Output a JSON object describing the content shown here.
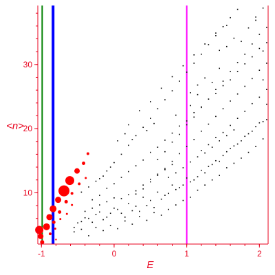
{
  "chart_data": {
    "type": "scatter",
    "title": "",
    "xlabel": "E",
    "ylabel": "<n>",
    "xlim": [
      -1.05,
      2.12
    ],
    "ylim": [
      2.0,
      39.2
    ],
    "grid": false,
    "legend": "none",
    "x_ticks": [
      {
        "value": -1,
        "label": "-1"
      },
      {
        "value": 0,
        "label": "0"
      },
      {
        "value": 1,
        "label": "1"
      },
      {
        "value": 2,
        "label": "2"
      }
    ],
    "y_ticks": [
      {
        "value": 10,
        "label": "10"
      },
      {
        "value": 20,
        "label": "20"
      },
      {
        "value": 30,
        "label": "30"
      }
    ],
    "vertical_lines": [
      {
        "x": -0.99,
        "color": "#008000",
        "weight": "thin"
      },
      {
        "x": -0.84,
        "color": "#0000ff",
        "weight": "thick"
      },
      {
        "x": 1.0,
        "color": "#ff00ff",
        "weight": "medium"
      }
    ],
    "series": [
      {
        "color": "#ff0000",
        "marker": "red circles sized by weight",
        "points": [
          {
            "x": -1.01,
            "y": 3.2,
            "size": 4
          },
          {
            "x": -1.03,
            "y": 4.2,
            "size": 6
          },
          {
            "x": -0.99,
            "y": 2.3,
            "size": 3
          },
          {
            "x": -0.93,
            "y": 4.7,
            "size": 5
          },
          {
            "x": -0.89,
            "y": 6.2,
            "size": 4.5
          },
          {
            "x": -0.84,
            "y": 7.5,
            "size": 5
          },
          {
            "x": -0.77,
            "y": 8.9,
            "size": 4.5
          },
          {
            "x": -0.69,
            "y": 10.3,
            "size": 8
          },
          {
            "x": -0.61,
            "y": 11.9,
            "size": 6.5
          },
          {
            "x": -0.51,
            "y": 13.4,
            "size": 4
          },
          {
            "x": -0.42,
            "y": 14.6,
            "size": 2.5
          },
          {
            "x": -0.36,
            "y": 16.1,
            "size": 2
          },
          {
            "x": -0.83,
            "y": 5.4,
            "size": 2.5
          },
          {
            "x": -0.75,
            "y": 7.0,
            "size": 2.5
          },
          {
            "x": -0.66,
            "y": 8.6,
            "size": 2.5
          },
          {
            "x": -0.58,
            "y": 9.9,
            "size": 2
          },
          {
            "x": -0.48,
            "y": 11.4,
            "size": 2
          },
          {
            "x": -0.39,
            "y": 12.3,
            "size": 1.5
          },
          {
            "x": -0.88,
            "y": 3.6,
            "size": 2
          },
          {
            "x": -0.81,
            "y": 4.4,
            "size": 1.5
          },
          {
            "x": -0.74,
            "y": 5.9,
            "size": 1.5
          },
          {
            "x": -0.65,
            "y": 6.7,
            "size": 1.5
          },
          {
            "x": -0.58,
            "y": 8.1,
            "size": 1.5
          },
          {
            "x": -0.8,
            "y": 2.7,
            "size": 1.2
          }
        ]
      },
      {
        "color": "#000000",
        "marker": "dot",
        "points": [
          [
            -0.55,
            3.9
          ],
          [
            -0.45,
            4.3
          ],
          [
            -0.35,
            3.3
          ],
          [
            -0.25,
            4.6
          ],
          [
            -0.15,
            4.1
          ],
          [
            -0.05,
            4.9
          ],
          [
            0.05,
            4.4
          ],
          [
            0.15,
            5.6
          ],
          [
            0.25,
            5.1
          ],
          [
            0.35,
            6.3
          ],
          [
            0.45,
            5.7
          ],
          [
            0.55,
            6.9
          ],
          [
            0.65,
            6.5
          ],
          [
            0.75,
            7.4
          ],
          [
            0.85,
            8.1
          ],
          [
            0.95,
            8.8
          ],
          [
            1.05,
            9.3
          ],
          [
            1.15,
            10.4
          ],
          [
            1.25,
            11.2
          ],
          [
            1.35,
            12.0
          ],
          [
            1.45,
            12.7
          ],
          [
            1.55,
            13.9
          ],
          [
            1.65,
            14.6
          ],
          [
            1.75,
            15.4
          ],
          [
            1.85,
            16.3
          ],
          [
            1.95,
            17.2
          ],
          [
            2.05,
            18.4
          ],
          [
            -0.5,
            5.3
          ],
          [
            -0.4,
            6.1
          ],
          [
            -0.3,
            5.4
          ],
          [
            -0.2,
            7.0
          ],
          [
            -0.1,
            6.2
          ],
          [
            0.0,
            7.6
          ],
          [
            0.1,
            6.8
          ],
          [
            0.2,
            8.3
          ],
          [
            0.3,
            7.9
          ],
          [
            0.4,
            9.3
          ],
          [
            0.5,
            8.8
          ],
          [
            0.6,
            10.1
          ],
          [
            0.7,
            9.6
          ],
          [
            0.8,
            11.2
          ],
          [
            0.9,
            10.8
          ],
          [
            1.0,
            12.3
          ],
          [
            1.1,
            12.0
          ],
          [
            1.2,
            13.5
          ],
          [
            1.3,
            14.1
          ],
          [
            1.4,
            15.0
          ],
          [
            1.5,
            15.8
          ],
          [
            1.6,
            16.9
          ],
          [
            1.7,
            17.6
          ],
          [
            1.8,
            18.8
          ],
          [
            1.9,
            19.6
          ],
          [
            2.0,
            20.9
          ],
          [
            2.1,
            21.4
          ],
          [
            -0.3,
            8.9
          ],
          [
            -0.2,
            9.6
          ],
          [
            -0.1,
            10.7
          ],
          [
            0.0,
            11.4
          ],
          [
            0.1,
            12.4
          ],
          [
            0.2,
            13.3
          ],
          [
            0.3,
            14.2
          ],
          [
            0.4,
            15.1
          ],
          [
            0.5,
            16.3
          ],
          [
            0.6,
            17.1
          ],
          [
            0.7,
            18.2
          ],
          [
            0.8,
            19.3
          ],
          [
            0.9,
            20.4
          ],
          [
            1.0,
            21.2
          ],
          [
            1.1,
            22.5
          ],
          [
            1.2,
            23.4
          ],
          [
            1.3,
            24.6
          ],
          [
            1.4,
            25.5
          ],
          [
            1.5,
            26.7
          ],
          [
            1.6,
            27.6
          ],
          [
            1.7,
            28.9
          ],
          [
            1.8,
            30.1
          ],
          [
            1.9,
            31.2
          ],
          [
            2.0,
            32.5
          ],
          [
            2.1,
            33.4
          ],
          [
            -0.2,
            12.2
          ],
          [
            -0.1,
            13.4
          ],
          [
            0.0,
            14.7
          ],
          [
            0.1,
            16.0
          ],
          [
            0.2,
            17.4
          ],
          [
            0.3,
            18.9
          ],
          [
            0.4,
            20.2
          ],
          [
            0.5,
            21.6
          ],
          [
            0.6,
            23.1
          ],
          [
            0.7,
            24.5
          ],
          [
            0.8,
            25.9
          ],
          [
            0.9,
            27.4
          ],
          [
            1.0,
            28.8
          ],
          [
            1.1,
            30.2
          ],
          [
            1.2,
            31.6
          ],
          [
            1.3,
            33.1
          ],
          [
            1.4,
            34.5
          ],
          [
            1.5,
            35.9
          ],
          [
            1.6,
            37.3
          ],
          [
            1.7,
            38.6
          ],
          [
            0.3,
            9.8
          ],
          [
            0.4,
            10.6
          ],
          [
            0.5,
            11.7
          ],
          [
            0.6,
            12.9
          ],
          [
            0.7,
            13.8
          ],
          [
            0.8,
            14.9
          ],
          [
            0.9,
            16.1
          ],
          [
            1.0,
            17.2
          ],
          [
            1.1,
            18.3
          ],
          [
            1.2,
            19.6
          ],
          [
            1.3,
            20.7
          ],
          [
            1.4,
            21.9
          ],
          [
            1.5,
            23.1
          ],
          [
            1.6,
            24.3
          ],
          [
            1.7,
            25.4
          ],
          [
            1.8,
            26.6
          ],
          [
            1.9,
            27.8
          ],
          [
            2.0,
            29.1
          ],
          [
            2.1,
            30.2
          ],
          [
            0.6,
            15.2
          ],
          [
            0.7,
            16.4
          ],
          [
            0.8,
            17.9
          ],
          [
            0.9,
            19.1
          ],
          [
            1.0,
            20.6
          ],
          [
            1.1,
            21.8
          ],
          [
            1.2,
            23.3
          ],
          [
            1.3,
            24.6
          ],
          [
            1.4,
            26.1
          ],
          [
            1.5,
            27.4
          ],
          [
            1.6,
            28.9
          ],
          [
            1.7,
            30.3
          ],
          [
            1.8,
            31.6
          ],
          [
            1.9,
            33.2
          ],
          [
            2.0,
            34.7
          ],
          [
            2.1,
            35.8
          ],
          [
            1.2,
            16.6
          ],
          [
            1.3,
            17.5
          ],
          [
            1.4,
            18.6
          ],
          [
            1.5,
            19.4
          ],
          [
            1.6,
            20.5
          ],
          [
            1.7,
            21.6
          ],
          [
            1.8,
            22.7
          ],
          [
            1.9,
            23.9
          ],
          [
            2.0,
            24.9
          ],
          [
            2.1,
            26.1
          ],
          [
            0.75,
            12.4
          ],
          [
            0.85,
            13.1
          ],
          [
            0.95,
            13.9
          ],
          [
            1.05,
            14.8
          ],
          [
            1.15,
            15.6
          ],
          [
            1.25,
            16.2
          ],
          [
            1.35,
            17.1
          ],
          [
            1.45,
            18.1
          ],
          [
            1.55,
            18.9
          ],
          [
            1.65,
            19.8
          ],
          [
            0.1,
            9.1
          ],
          [
            0.2,
            9.7
          ],
          [
            0.3,
            10.3
          ],
          [
            0.4,
            11.2
          ],
          [
            0.5,
            12.1
          ],
          [
            0.6,
            12.7
          ],
          [
            0.7,
            13.6
          ],
          [
            0.8,
            14.4
          ],
          [
            -0.4,
            7.1
          ],
          [
            -0.3,
            7.6
          ],
          [
            -0.2,
            8.1
          ],
          [
            -0.1,
            8.6
          ],
          [
            0.0,
            9.2
          ],
          [
            -0.45,
            10.1
          ],
          [
            -0.35,
            10.9
          ],
          [
            -0.25,
            11.8
          ],
          [
            -0.15,
            12.6
          ],
          [
            -0.05,
            14.0
          ],
          [
            0.2,
            20.6
          ],
          [
            0.35,
            22.8
          ],
          [
            0.5,
            24.2
          ],
          [
            0.65,
            26.3
          ],
          [
            0.8,
            28.1
          ],
          [
            0.95,
            29.8
          ],
          [
            1.1,
            31.5
          ],
          [
            1.25,
            33.2
          ],
          [
            1.4,
            34.9
          ],
          [
            1.55,
            36.1
          ],
          [
            0.05,
            18.1
          ],
          [
            0.15,
            19.2
          ],
          [
            0.25,
            18.3
          ],
          [
            0.45,
            19.7
          ],
          [
            0.55,
            20.8
          ],
          [
            0.85,
            22.1
          ],
          [
            1.05,
            23.6
          ],
          [
            1.15,
            25.3
          ],
          [
            1.35,
            27.2
          ],
          [
            1.45,
            29.4
          ],
          [
            1.75,
            33.6
          ],
          [
            1.95,
            36.9
          ],
          [
            2.05,
            38.8
          ],
          [
            0.15,
            6.2
          ],
          [
            0.25,
            7.2
          ],
          [
            0.35,
            7.1
          ],
          [
            0.45,
            8.0
          ],
          [
            0.55,
            7.7
          ],
          [
            0.65,
            9.0
          ],
          [
            0.75,
            9.9
          ],
          [
            0.85,
            10.5
          ],
          [
            0.95,
            11.2
          ],
          [
            1.05,
            11.7
          ],
          [
            1.15,
            12.5
          ],
          [
            1.25,
            13.1
          ],
          [
            1.35,
            14.4
          ],
          [
            1.45,
            14.9
          ],
          [
            1.55,
            16.4
          ],
          [
            1.65,
            17.3
          ],
          [
            1.75,
            18.1
          ],
          [
            1.85,
            19.2
          ],
          [
            1.95,
            20.3
          ],
          [
            2.05,
            21.1
          ],
          [
            -0.55,
            4.6
          ],
          [
            -0.45,
            5.5
          ],
          [
            -0.35,
            6.0
          ],
          [
            -0.25,
            6.6
          ],
          [
            -0.15,
            5.8
          ],
          [
            -0.05,
            6.8
          ],
          [
            0.05,
            7.4
          ],
          [
            1.05,
            25.6
          ],
          [
            1.15,
            26.8
          ],
          [
            1.25,
            27.9
          ],
          [
            1.45,
            32.2
          ],
          [
            1.55,
            32.8
          ],
          [
            1.65,
            34.1
          ],
          [
            1.85,
            35.7
          ],
          [
            1.95,
            37.4
          ],
          [
            2.05,
            32.1
          ],
          [
            2.05,
            27.6
          ],
          [
            2.1,
            23.8
          ]
        ]
      }
    ]
  }
}
